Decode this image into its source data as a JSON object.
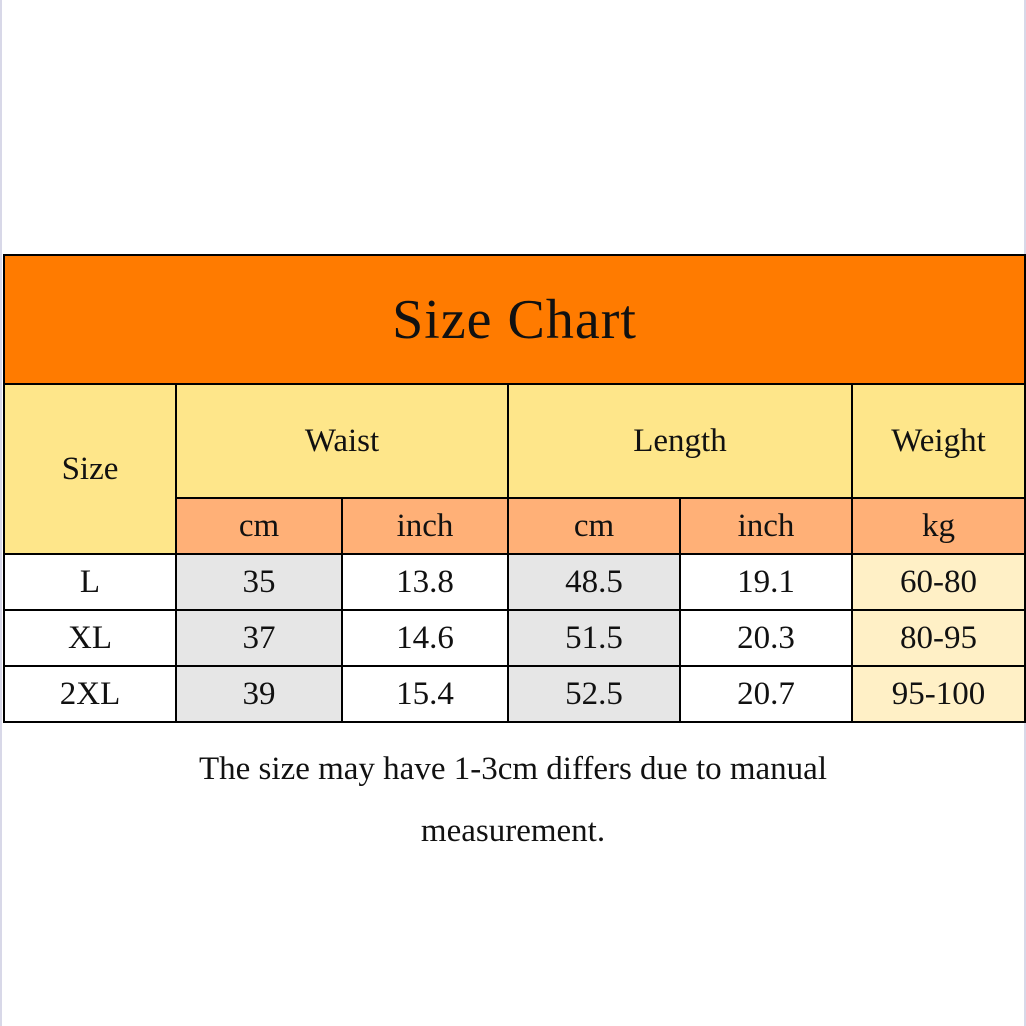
{
  "title": "Size Chart",
  "headers": {
    "size": "Size",
    "waist": "Waist",
    "length": "Length",
    "weight": "Weight"
  },
  "units": [
    "cm",
    "inch",
    "cm",
    "inch",
    "kg"
  ],
  "rows": [
    {
      "size": "L",
      "waist_cm": "35",
      "waist_inch": "13.8",
      "length_cm": "48.5",
      "length_inch": "19.1",
      "weight_kg": "60-80"
    },
    {
      "size": "XL",
      "waist_cm": "37",
      "waist_inch": "14.6",
      "length_cm": "51.5",
      "length_inch": "20.3",
      "weight_kg": "80-95"
    },
    {
      "size": "2XL",
      "waist_cm": "39",
      "waist_inch": "15.4",
      "length_cm": "52.5",
      "length_inch": "20.7",
      "weight_kg": "95-100"
    }
  ],
  "note": "The size may have 1-3cm differs due to manual measurement.",
  "colors": {
    "title_bg": "#ff7b00",
    "header_bg": "#fee68a",
    "unit_bg": "#ffb077",
    "grey_cell": "#e6e6e6",
    "weight_cell": "#fff0c6"
  }
}
